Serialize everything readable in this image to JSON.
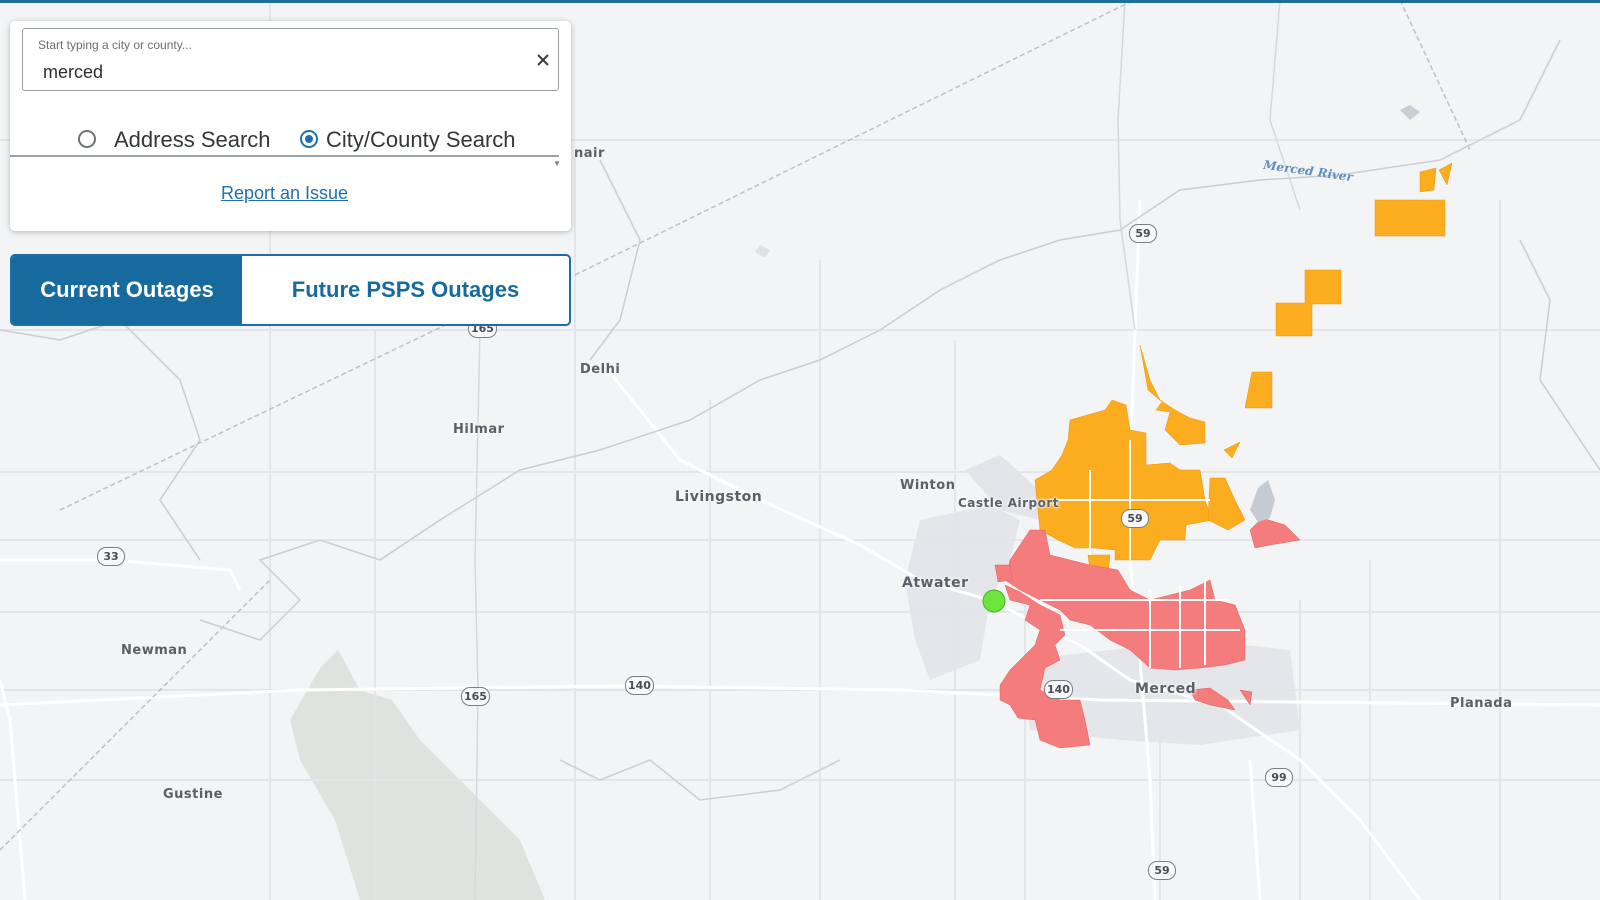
{
  "colors": {
    "accent": "#176a9e",
    "current_outage": "#f47c7c",
    "future_outage": "#fbad1f",
    "location_marker": "#6ee53a"
  },
  "search": {
    "placeholder": "Start typing a city or county...",
    "value": "merced",
    "clear_icon": "close-icon",
    "options": [
      {
        "label": "Address Search",
        "selected": false
      },
      {
        "label": "City/County Search",
        "selected": true
      }
    ],
    "report_link": "Report an Issue"
  },
  "tabs": {
    "current": "Current Outages",
    "future": "Future PSPS Outages",
    "active": "current"
  },
  "map": {
    "places": {
      "delhi": "Delhi",
      "hilmar": "Hilmar",
      "livingston": "Livingston",
      "winton": "Winton",
      "castle_airport": "Castle Airport",
      "atwater": "Atwater",
      "merced": "Merced",
      "planada": "Planada",
      "newman": "Newman",
      "gustine": "Gustine",
      "cut_label": "nair"
    },
    "river": "Merced River",
    "highways": {
      "h59_north": "59",
      "h59_center": "59",
      "h59_south": "59",
      "h165_west": "165",
      "h165_north": "165",
      "h140_west": "140",
      "h140_center": "140",
      "h33": "33",
      "h99": "99"
    }
  }
}
